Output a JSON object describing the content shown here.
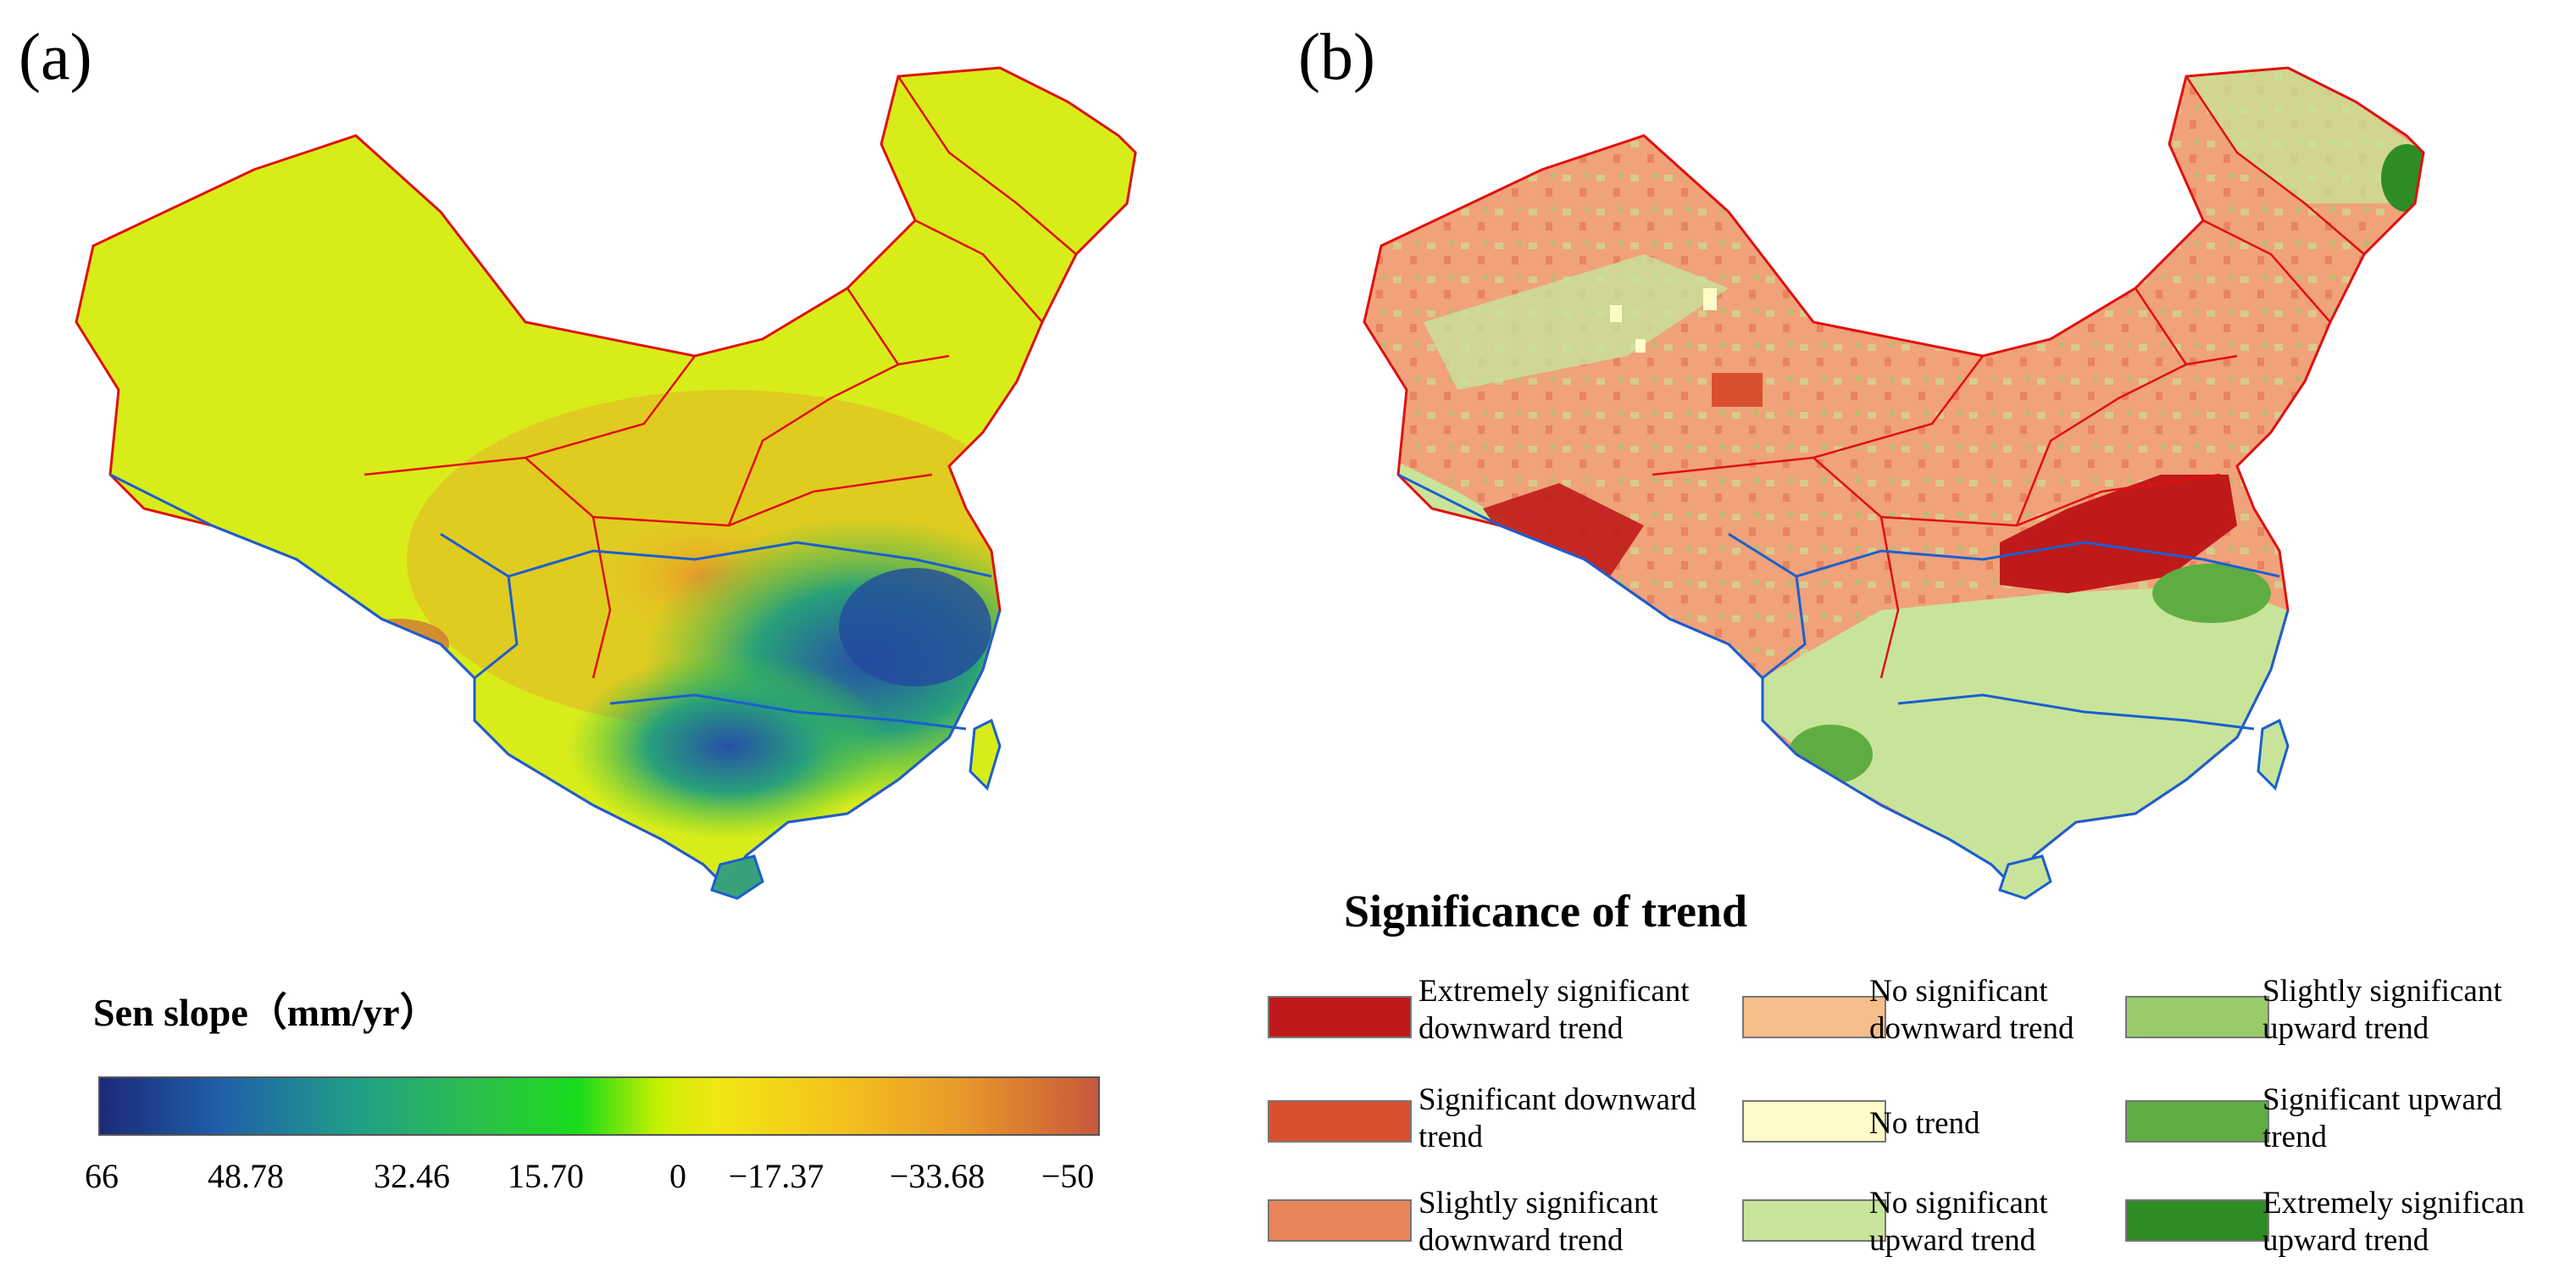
{
  "panels": {
    "a": {
      "label": "(a)"
    },
    "b": {
      "label": "(b)"
    }
  },
  "colorbar": {
    "title": "Sen slope（mm/yr）",
    "ticks": [
      "66",
      "48.78",
      "32.46",
      "15.70",
      "0",
      "−17.37",
      "−33.68",
      "−50"
    ],
    "colors": [
      "#1b2a78",
      "#1f9c8a",
      "#19dc1a",
      "#c8f000",
      "#f2e614",
      "#e89a2a",
      "#c8573c"
    ]
  },
  "legend": {
    "title": "Significance of trend",
    "items": [
      {
        "line1": "Extremely significant",
        "line2": "downward trend",
        "color": "#c0191a"
      },
      {
        "line1": "Significant downward",
        "line2": "trend",
        "color": "#d9502e"
      },
      {
        "line1": "Slightly significant",
        "line2": "downward trend",
        "color": "#e8845a"
      },
      {
        "line1": "No significant",
        "line2": "downward trend",
        "color": "#f5be8a"
      },
      {
        "line1": "No trend",
        "line2": "",
        "color": "#fdfcc8"
      },
      {
        "line1": "No significant",
        "line2": "upward trend",
        "color": "#c8e49a"
      },
      {
        "line1": "Slightly significant",
        "line2": "upward trend",
        "color": "#98cc6a"
      },
      {
        "line1": "Significant upward",
        "line2": "trend",
        "color": "#5fad42"
      },
      {
        "line1": "Extremely significan",
        "line2": "upward trend",
        "color": "#2e8c24"
      }
    ]
  },
  "colors": {
    "province_border": "#e01010",
    "basin_border": "#1a5fd0",
    "coast": "#1a5fd0"
  }
}
